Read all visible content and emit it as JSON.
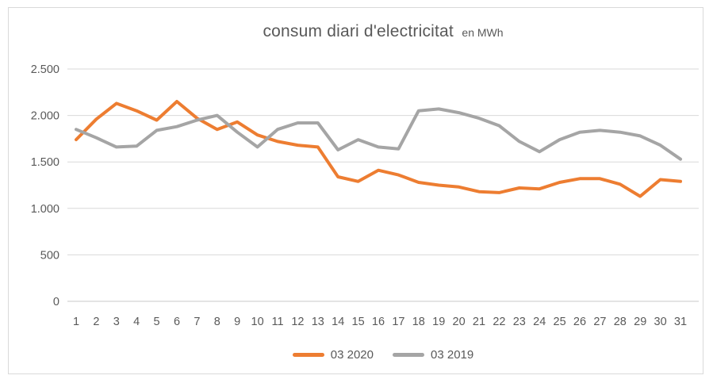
{
  "title": {
    "main": "consum diari d'electricitat",
    "suffix": "en MWh"
  },
  "chart_data": {
    "type": "line",
    "x": [
      1,
      2,
      3,
      4,
      5,
      6,
      7,
      8,
      9,
      10,
      11,
      12,
      13,
      14,
      15,
      16,
      17,
      18,
      19,
      20,
      21,
      22,
      23,
      24,
      25,
      26,
      27,
      28,
      29,
      30,
      31
    ],
    "series": [
      {
        "name": "03 2020",
        "color": "#ED7D31",
        "values": [
          1740,
          1960,
          2130,
          2050,
          1950,
          2150,
          1970,
          1850,
          1930,
          1790,
          1720,
          1680,
          1660,
          1340,
          1290,
          1410,
          1360,
          1280,
          1250,
          1230,
          1180,
          1170,
          1220,
          1210,
          1280,
          1320,
          1320,
          1260,
          1130,
          1310,
          1290
        ]
      },
      {
        "name": "03 2019",
        "color": "#A5A5A5",
        "values": [
          1850,
          1760,
          1660,
          1670,
          1840,
          1880,
          1950,
          2000,
          1820,
          1660,
          1850,
          1920,
          1920,
          1630,
          1740,
          1660,
          1640,
          2050,
          2070,
          2030,
          1970,
          1890,
          1720,
          1610,
          1740,
          1820,
          1840,
          1820,
          1780,
          1680,
          1530
        ]
      }
    ],
    "title": "consum diari d'electricitat en MWh",
    "xlabel": "",
    "ylabel": "",
    "ylim": [
      0,
      2500
    ],
    "yticks": [
      0,
      500,
      1000,
      1500,
      2000,
      2500
    ],
    "ytick_labels": [
      "0",
      "500",
      "1.000",
      "1.500",
      "2.000",
      "2.500"
    ],
    "grid": true,
    "legend_position": "bottom",
    "colors": {
      "text": "#595959",
      "gridline": "#D9D9D9",
      "axis_line": "#C8C8C8",
      "frame_border": "#D9D9D9"
    }
  }
}
